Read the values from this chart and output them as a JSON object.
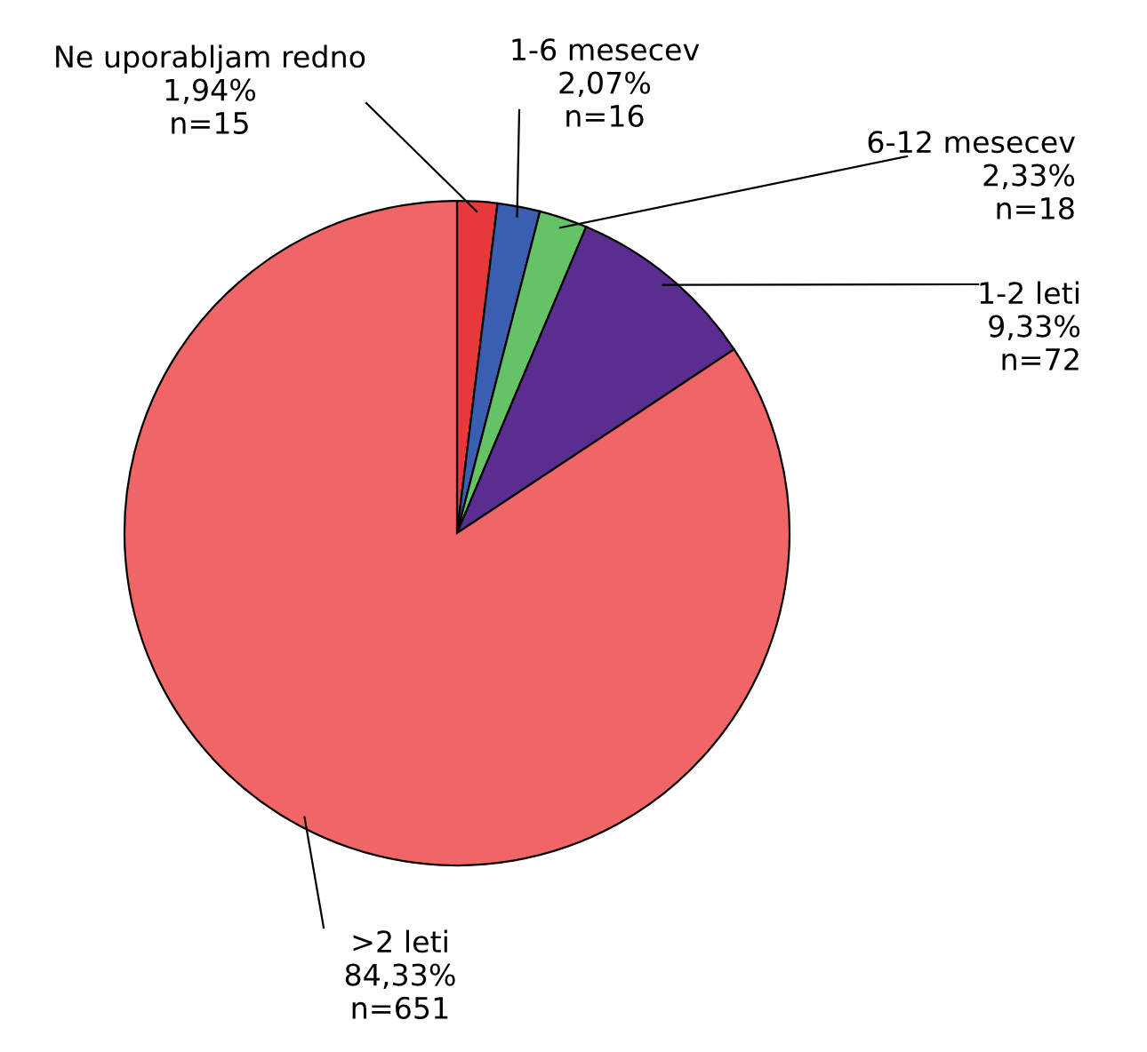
{
  "chart_data": {
    "type": "pie",
    "categories": [
      "Ne uporabljam redno",
      "1-6 mesecev",
      "6-12 mesecev",
      "1-2 leti",
      ">2 leti"
    ],
    "values": [
      15,
      16,
      18,
      72,
      651
    ],
    "colors": [
      "#e8393a",
      "#3a5fb0",
      "#66c266",
      "#5c2d91",
      "#f06565"
    ],
    "value_labels": [
      "1,94%\nn=15",
      "2,07%\nn=16",
      "2,33%\nn=18",
      "9,33%\nn=72",
      "84,33%\nn=651"
    ],
    "legend": false
  }
}
